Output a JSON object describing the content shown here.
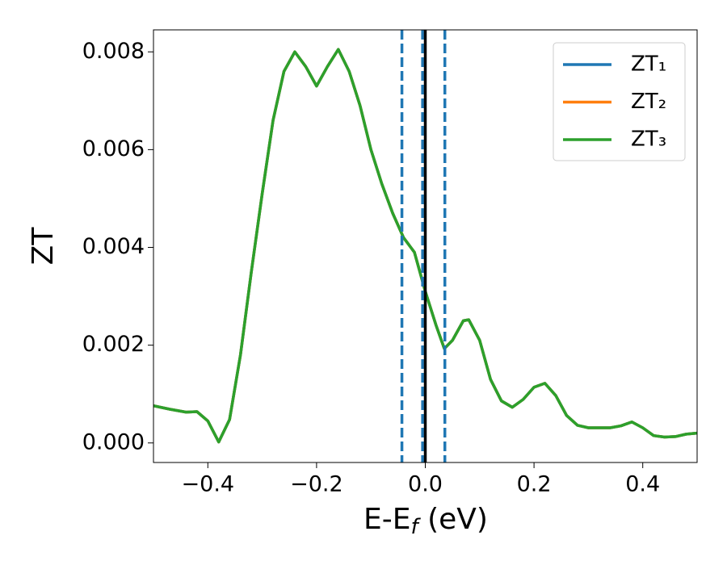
{
  "chart_data": {
    "type": "line",
    "xlabel": [
      "E-E",
      "f",
      " (eV)"
    ],
    "ylabel": "ZT",
    "xlim": [
      -0.5,
      0.5
    ],
    "ylim": [
      -0.0004,
      0.00845
    ],
    "xticks": [
      {
        "value": -0.4,
        "label": "−0.4"
      },
      {
        "value": -0.2,
        "label": "−0.2"
      },
      {
        "value": 0,
        "label": "0.0"
      },
      0.2,
      0.4
    ],
    "yticks": [
      {
        "value": 0,
        "label": "0.000"
      },
      {
        "value": 0.002,
        "label": "0.002"
      },
      {
        "value": 0.004,
        "label": "0.004"
      },
      {
        "value": 0.006,
        "label": "0.006"
      },
      {
        "value": 0.008,
        "label": "0.008"
      }
    ],
    "legend": "upper right",
    "x": [
      -0.5,
      -0.47,
      -0.44,
      -0.42,
      -0.4,
      -0.38,
      -0.36,
      -0.34,
      -0.32,
      -0.3,
      -0.28,
      -0.26,
      -0.24,
      -0.22,
      -0.2,
      -0.18,
      -0.16,
      -0.14,
      -0.12,
      -0.1,
      -0.08,
      -0.06,
      -0.04,
      -0.02,
      0,
      0.02,
      0.035,
      0.05,
      0.07,
      0.08,
      0.1,
      0.12,
      0.14,
      0.16,
      0.18,
      0.2,
      0.22,
      0.24,
      0.26,
      0.28,
      0.3,
      0.34,
      0.36,
      0.38,
      0.4,
      0.42,
      0.44,
      0.46,
      0.48,
      0.5
    ],
    "series": [
      {
        "name": "ZT₁",
        "color": "#1f77b4",
        "values": [
          0.00076,
          0.00069,
          0.00063,
          0.00064,
          0.00045,
          2e-05,
          0.00048,
          0.0018,
          0.0035,
          0.0051,
          0.0066,
          0.0076,
          0.008,
          0.0077,
          0.0073,
          0.0077,
          0.00805,
          0.0076,
          0.0069,
          0.006,
          0.0053,
          0.0047,
          0.0042,
          0.0039,
          0.0031,
          0.0024,
          0.00193,
          0.0021,
          0.0025,
          0.00252,
          0.0021,
          0.0013,
          0.00086,
          0.00073,
          0.00089,
          0.00114,
          0.00122,
          0.00097,
          0.00056,
          0.00036,
          0.00031,
          0.00031,
          0.00035,
          0.00043,
          0.00031,
          0.00015,
          0.00012,
          0.00013,
          0.00018,
          0.0002
        ]
      },
      {
        "name": "ZT₂",
        "color": "#ff7f0e",
        "values": [
          0.00076,
          0.00069,
          0.00063,
          0.00064,
          0.00045,
          2e-05,
          0.00048,
          0.0018,
          0.0035,
          0.0051,
          0.0066,
          0.0076,
          0.008,
          0.0077,
          0.0073,
          0.0077,
          0.00805,
          0.0076,
          0.0069,
          0.006,
          0.0053,
          0.0047,
          0.0042,
          0.0039,
          0.0031,
          0.0024,
          0.00193,
          0.0021,
          0.0025,
          0.00252,
          0.0021,
          0.0013,
          0.00086,
          0.00073,
          0.00089,
          0.00114,
          0.00122,
          0.00097,
          0.00056,
          0.00036,
          0.00031,
          0.00031,
          0.00035,
          0.00043,
          0.00031,
          0.00015,
          0.00012,
          0.00013,
          0.00018,
          0.0002
        ]
      },
      {
        "name": "ZT₃",
        "color": "#2ca02c",
        "values": [
          0.00076,
          0.00069,
          0.00063,
          0.00064,
          0.00045,
          2e-05,
          0.00048,
          0.0018,
          0.0035,
          0.0051,
          0.0066,
          0.0076,
          0.008,
          0.0077,
          0.0073,
          0.0077,
          0.00805,
          0.0076,
          0.0069,
          0.006,
          0.0053,
          0.0047,
          0.0042,
          0.0039,
          0.0031,
          0.0024,
          0.00193,
          0.0021,
          0.0025,
          0.00252,
          0.0021,
          0.0013,
          0.00086,
          0.00073,
          0.00089,
          0.00114,
          0.00122,
          0.00097,
          0.00056,
          0.00036,
          0.00031,
          0.00031,
          0.00035,
          0.00043,
          0.00031,
          0.00015,
          0.00012,
          0.00013,
          0.00018,
          0.0002
        ]
      }
    ],
    "vlines": [
      {
        "x": -0.043,
        "style": "dashed",
        "color": "#1f77b4"
      },
      {
        "x": -0.005,
        "style": "dashed",
        "color": "#1f77b4"
      },
      {
        "x": 0.036,
        "style": "dashed",
        "color": "#1f77b4"
      },
      {
        "x": 0,
        "style": "solid",
        "color": "#000000"
      }
    ]
  }
}
